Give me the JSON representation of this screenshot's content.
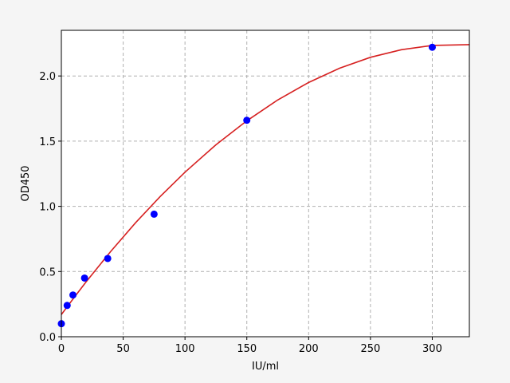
{
  "chart_data": {
    "type": "scatter",
    "x_label": "IU/ml",
    "y_label": "OD450",
    "xlim": [
      0,
      330
    ],
    "ylim": [
      0,
      2.35
    ],
    "xticks": [
      0,
      50,
      100,
      150,
      200,
      250,
      300
    ],
    "yticks": [
      {
        "value": 0,
        "label": "0.0"
      },
      0.5,
      {
        "value": 1,
        "label": "1.0"
      },
      1.5,
      {
        "value": 2,
        "label": "2.0"
      }
    ],
    "grid": true,
    "series": [
      {
        "style": "marker",
        "color": "#0000ff",
        "x": [
          0,
          4.69,
          9.375,
          18.75,
          37.5,
          75,
          150,
          300
        ],
        "values": [
          0.1,
          0.24,
          0.32,
          0.45,
          0.6,
          0.94,
          1.66,
          2.22
        ]
      },
      {
        "style": "line",
        "color": "#d62020",
        "x": [
          0,
          10,
          20,
          40,
          60,
          80,
          100,
          125,
          150,
          175,
          200,
          225,
          250,
          275,
          300,
          330
        ],
        "values": [
          0.17,
          0.297,
          0.421,
          0.655,
          0.874,
          1.076,
          1.262,
          1.472,
          1.656,
          1.816,
          1.95,
          2.059,
          2.143,
          2.201,
          2.234,
          2.24
        ]
      }
    ]
  }
}
